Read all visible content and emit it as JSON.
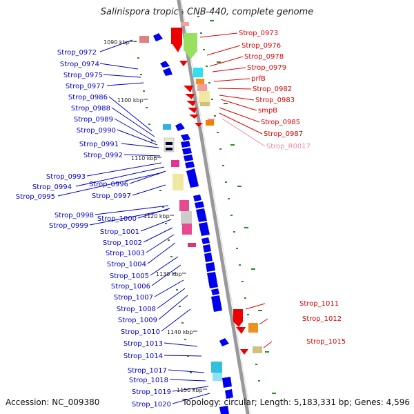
{
  "title": "Salinispora tropica CNB-440, complete genome",
  "footer": {
    "accession": "Accession: NC_009380",
    "summary": "Topology: circular; Length: 5,183,331 bp; Genes: 4,596"
  },
  "colors": {
    "left_label": "#0000cc",
    "right_label": "#dd0000",
    "rna_label": "#ee88aa",
    "backbone": "#888888",
    "ticks": "#228822",
    "forward_gene": "#0000ee",
    "reverse_gene": "#ee0000"
  },
  "kbp_markers": [
    "1090 kbp",
    "1100 kbp",
    "1110 kbp",
    "1120 kbp",
    "1130 kbp",
    "1140 kbp",
    "1150 kbp"
  ],
  "left_labels": [
    "Strop_0972",
    "Strop_0974",
    "Strop_0975",
    "Strop_0977",
    "Strop_0986",
    "Strop_0988",
    "Strop_0989",
    "Strop_0990",
    "Strop_0991",
    "Strop_0992",
    "Strop_0993",
    "Strop_0994",
    "Strop_0996",
    "Strop_0995",
    "Strop_0997",
    "Strop_0998",
    "Strop_1000",
    "Strop_0999",
    "Strop_1001",
    "Strop_1002",
    "Strop_1003",
    "Strop_1004",
    "Strop_1005",
    "Strop_1006",
    "Strop_1007",
    "Strop_1008",
    "Strop_1009",
    "Strop_1010",
    "Strop_1013",
    "Strop_1014",
    "Strop_1017",
    "Strop_1018",
    "Strop_1019",
    "Strop_1020"
  ],
  "right_labels": [
    "Strop_0973",
    "Strop_0976",
    "Strop_0978",
    "Strop_0979",
    "prfB",
    "Strop_0982",
    "Strop_0983",
    "smpB",
    "Strop_0985",
    "Strop_0987",
    "Strop_R0017",
    "Strop_1011",
    "Strop_1012",
    "Strop_1015"
  ]
}
